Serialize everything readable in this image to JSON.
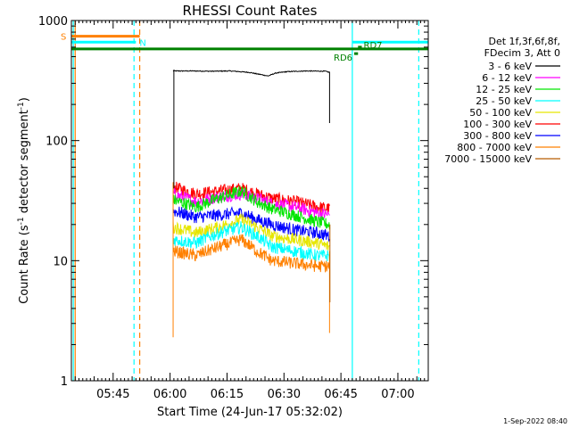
{
  "chart_data": {
    "type": "line",
    "title": "RHESSI Count Rates",
    "xlabel": "Start Time (24-Jun-17 05:32:02)",
    "ylabel_main": "Count Rate (s",
    "ylabel_sup1": "-1",
    "ylabel_mid": " detector segment",
    "ylabel_sup2": "-1",
    "ylabel_end": ")",
    "y_scale": "log",
    "ylim": [
      1,
      1000
    ],
    "xlim_minutes": [
      "05:34:00",
      "07:08:00"
    ],
    "x_ticks": [
      {
        "label": "05:45",
        "min": 345
      },
      {
        "label": "06:00",
        "min": 360
      },
      {
        "label": "06:15",
        "min": 375
      },
      {
        "label": "06:30",
        "min": 390
      },
      {
        "label": "06:45",
        "min": 405
      },
      {
        "label": "07:00",
        "min": 420
      }
    ],
    "y_ticks": [
      {
        "label": "1",
        "value": 1
      },
      {
        "label": "10",
        "value": 10
      },
      {
        "label": "100",
        "value": 100
      },
      {
        "label": "1000",
        "value": 1000
      }
    ],
    "legend": {
      "position": "right",
      "header": [
        "Det 1f,3f,6f,8f,",
        "FDecim 3, Att 0"
      ],
      "entries": [
        {
          "label": "3 - 6 keV",
          "color": "#000000"
        },
        {
          "label": "6 - 12 keV",
          "color": "#ff00ff"
        },
        {
          "label": "12 - 25 keV",
          "color": "#00e600"
        },
        {
          "label": "25 - 50 keV",
          "color": "#00ffff"
        },
        {
          "label": "50 - 100 keV",
          "color": "#e6e600"
        },
        {
          "label": "100 - 300 keV",
          "color": "#ff0000"
        },
        {
          "label": "300 - 800 keV",
          "color": "#0000ff"
        },
        {
          "label": "800 - 7000 keV",
          "color": "#ff8000"
        },
        {
          "label": "7000 - 15000 keV",
          "color": "#b85c00"
        }
      ]
    },
    "series": [
      {
        "name": "3 - 6 keV",
        "color": "#000000",
        "start_min": 360.8,
        "end_min": 402,
        "points": [
          [
            0,
            380
          ],
          [
            5,
            380
          ],
          [
            10,
            378
          ],
          [
            15,
            380
          ],
          [
            20,
            370
          ],
          [
            23,
            355
          ],
          [
            25,
            345
          ],
          [
            27,
            365
          ],
          [
            30,
            375
          ],
          [
            35,
            380
          ],
          [
            40,
            378
          ],
          [
            41.2,
            370
          ]
        ]
      },
      {
        "name": "100 - 300 keV",
        "color": "#ff0000",
        "start_min": 360.8,
        "end_min": 402,
        "points": [
          [
            0,
            41
          ],
          [
            6,
            36
          ],
          [
            12,
            38
          ],
          [
            18,
            40
          ],
          [
            22,
            36
          ],
          [
            26,
            33
          ],
          [
            32,
            31
          ],
          [
            38,
            28
          ],
          [
            41.2,
            27
          ]
        ]
      },
      {
        "name": "6 - 12 keV",
        "color": "#ff00ff",
        "start_min": 360.8,
        "end_min": 402,
        "points": [
          [
            0,
            36
          ],
          [
            6,
            31
          ],
          [
            12,
            34
          ],
          [
            18,
            36
          ],
          [
            22,
            33
          ],
          [
            26,
            30
          ],
          [
            32,
            28
          ],
          [
            38,
            25
          ],
          [
            41.2,
            24
          ]
        ]
      },
      {
        "name": "12 - 25 keV",
        "color": "#00e600",
        "start_min": 360.8,
        "end_min": 402,
        "points": [
          [
            0,
            32
          ],
          [
            6,
            28
          ],
          [
            12,
            33
          ],
          [
            18,
            38
          ],
          [
            22,
            31
          ],
          [
            26,
            27
          ],
          [
            32,
            24
          ],
          [
            38,
            21
          ],
          [
            41.2,
            20
          ]
        ]
      },
      {
        "name": "300 - 800 keV",
        "color": "#0000ff",
        "start_min": 360.8,
        "end_min": 402,
        "points": [
          [
            0,
            26
          ],
          [
            6,
            23
          ],
          [
            12,
            24
          ],
          [
            18,
            25
          ],
          [
            22,
            22
          ],
          [
            26,
            20
          ],
          [
            32,
            18
          ],
          [
            38,
            17
          ],
          [
            41.2,
            16
          ]
        ]
      },
      {
        "name": "50 - 100 keV",
        "color": "#e6e600",
        "start_min": 360.8,
        "end_min": 402,
        "points": [
          [
            0,
            19
          ],
          [
            6,
            17
          ],
          [
            12,
            19
          ],
          [
            18,
            22
          ],
          [
            22,
            19
          ],
          [
            26,
            16
          ],
          [
            32,
            15
          ],
          [
            38,
            14
          ],
          [
            41.2,
            13
          ]
        ]
      },
      {
        "name": "25 - 50 keV",
        "color": "#00ffff",
        "start_min": 360.8,
        "end_min": 402,
        "points": [
          [
            0,
            15
          ],
          [
            6,
            14
          ],
          [
            12,
            17
          ],
          [
            18,
            19
          ],
          [
            22,
            16
          ],
          [
            26,
            13
          ],
          [
            32,
            12
          ],
          [
            38,
            11
          ],
          [
            41.2,
            11
          ]
        ]
      },
      {
        "name": "800 - 7000 keV",
        "color": "#ff8000",
        "start_min": 360.8,
        "end_min": 402,
        "points": [
          [
            0,
            12
          ],
          [
            6,
            11
          ],
          [
            12,
            13
          ],
          [
            18,
            15
          ],
          [
            22,
            12
          ],
          [
            26,
            10
          ],
          [
            32,
            9.5
          ],
          [
            38,
            9
          ],
          [
            41.2,
            9
          ]
        ]
      }
    ],
    "markers": [
      {
        "label": "S",
        "color": "#ff8000",
        "value": 740,
        "start": "05:34:00",
        "end": "05:52:00"
      },
      {
        "label": "N",
        "color": "#00ffff",
        "value": 660,
        "start": "05:34:00",
        "end": "05:51:00"
      },
      {
        "label": "",
        "color": "#008000",
        "value": 580,
        "start": "05:34:00",
        "end": "07:08:00"
      },
      {
        "label": "",
        "color": "#00ffff",
        "value": 660,
        "start": "06:48:00",
        "end": "07:08:00"
      },
      {
        "label": "RD7",
        "color": "#008000",
        "value": 600,
        "start": "06:49:30",
        "end": "06:50:30"
      },
      {
        "label": "RD6",
        "color": "#008000",
        "value": 530,
        "start": "06:48:30",
        "end": "06:49:30"
      }
    ],
    "vertical_lines": [
      {
        "time": "05:34:30",
        "color": "#00ffff",
        "style": "solid"
      },
      {
        "time": "05:35:00",
        "color": "#ff8000",
        "style": "solid"
      },
      {
        "time": "05:50:30",
        "color": "#00ffff",
        "style": "dashed"
      },
      {
        "time": "05:52:00",
        "color": "#ff8000",
        "style": "dashed"
      },
      {
        "time": "06:48:00",
        "color": "#00ffff",
        "style": "solid"
      },
      {
        "time": "07:05:30",
        "color": "#00ffff",
        "style": "dashed"
      }
    ],
    "footer_date": "1-Sep-2022 08:40"
  }
}
